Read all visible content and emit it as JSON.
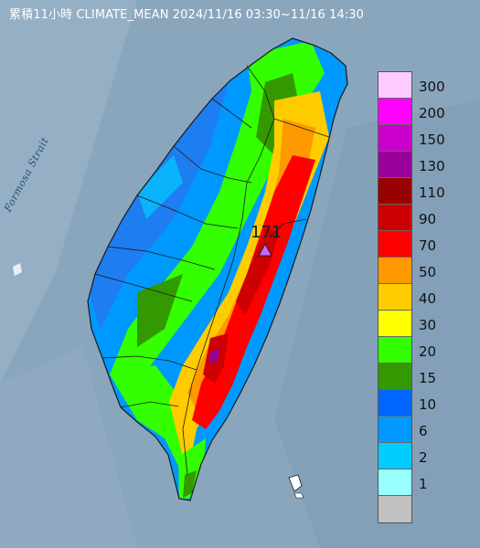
{
  "title": "累積11小時 CLIMATE_MEAN 2024/11/16 03:30~11/16 14:30",
  "strait_label": "Formosa Strait",
  "max_value": "171",
  "colors": {
    "sea": "#8aa6bd",
    "land_border": "#1a1a1a"
  },
  "legend": [
    {
      "label": "300",
      "color": "#ffcaff"
    },
    {
      "label": "200",
      "color": "#ff00ff"
    },
    {
      "label": "150",
      "color": "#cc00cc"
    },
    {
      "label": "130",
      "color": "#990099"
    },
    {
      "label": "110",
      "color": "#990000"
    },
    {
      "label": "90",
      "color": "#cc0000"
    },
    {
      "label": "70",
      "color": "#ff0000"
    },
    {
      "label": "50",
      "color": "#ff9900"
    },
    {
      "label": "40",
      "color": "#ffcc00"
    },
    {
      "label": "30",
      "color": "#ffff00"
    },
    {
      "label": "20",
      "color": "#33ff00"
    },
    {
      "label": "15",
      "color": "#339900"
    },
    {
      "label": "10",
      "color": "#0066ff"
    },
    {
      "label": "6",
      "color": "#0099ff"
    },
    {
      "label": "2",
      "color": "#00ccff"
    },
    {
      "label": "1",
      "color": "#99ffff"
    },
    {
      "label": "",
      "color": "#c1c1c1"
    }
  ]
}
